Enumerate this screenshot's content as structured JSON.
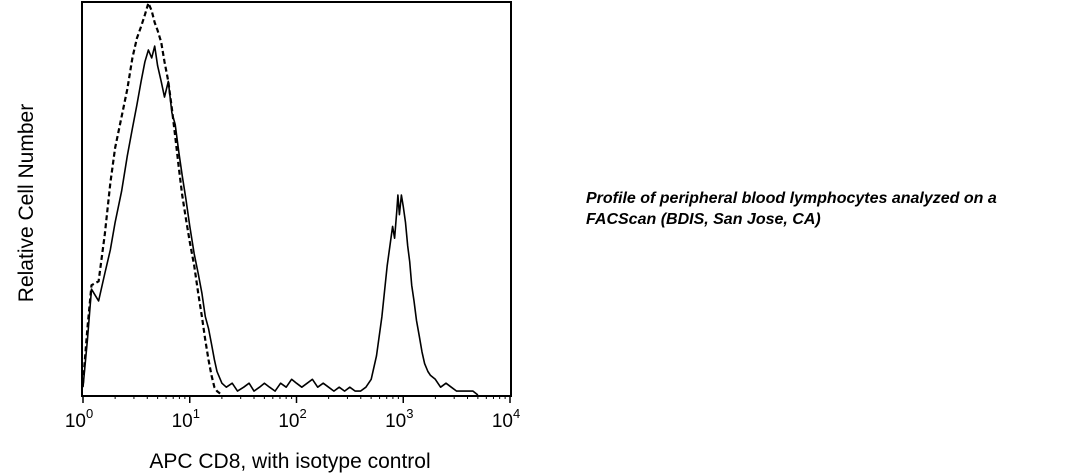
{
  "caption": {
    "line1": "Profile of peripheral blood lymphocytes analyzed on a",
    "line2": "FACScan (BDIS, San Jose, CA)"
  },
  "chart_data": {
    "type": "line",
    "title": "",
    "xlabel": "APC CD8, with isotype control",
    "ylabel": "Relative Cell Number",
    "x_scale": "log",
    "xlim": [
      1,
      10000
    ],
    "ylim": [
      0,
      100
    ],
    "grid": false,
    "legend": "none",
    "xticks": [
      {
        "base": "10",
        "exp": "0",
        "value": 1
      },
      {
        "base": "10",
        "exp": "1",
        "value": 10
      },
      {
        "base": "10",
        "exp": "2",
        "value": 100
      },
      {
        "base": "10",
        "exp": "3",
        "value": 1000
      },
      {
        "base": "10",
        "exp": "4",
        "value": 10000
      }
    ],
    "series": [
      {
        "style": "solid",
        "color": "#000000",
        "points": [
          [
            1.0,
            2
          ],
          [
            1.1,
            14
          ],
          [
            1.2,
            27
          ],
          [
            1.4,
            24
          ],
          [
            1.6,
            31
          ],
          [
            1.8,
            37
          ],
          [
            2.0,
            44
          ],
          [
            2.3,
            52
          ],
          [
            2.6,
            61
          ],
          [
            2.9,
            68
          ],
          [
            3.2,
            74
          ],
          [
            3.5,
            80
          ],
          [
            3.8,
            85
          ],
          [
            4.1,
            88
          ],
          [
            4.4,
            86
          ],
          [
            4.7,
            89
          ],
          [
            5.0,
            84
          ],
          [
            5.4,
            80
          ],
          [
            5.8,
            76
          ],
          [
            6.3,
            80
          ],
          [
            6.8,
            72
          ],
          [
            7.3,
            69
          ],
          [
            7.9,
            62
          ],
          [
            8.5,
            56
          ],
          [
            9.2,
            50
          ],
          [
            10,
            43
          ],
          [
            11,
            36
          ],
          [
            12,
            31
          ],
          [
            13,
            26
          ],
          [
            14,
            20
          ],
          [
            15,
            17
          ],
          [
            16,
            13
          ],
          [
            17,
            9
          ],
          [
            18,
            6
          ],
          [
            20,
            3
          ],
          [
            22,
            2
          ],
          [
            25,
            3
          ],
          [
            28,
            1
          ],
          [
            32,
            2
          ],
          [
            36,
            3
          ],
          [
            40,
            1
          ],
          [
            45,
            2
          ],
          [
            50,
            3
          ],
          [
            56,
            2
          ],
          [
            63,
            1
          ],
          [
            71,
            3
          ],
          [
            80,
            2
          ],
          [
            90,
            4
          ],
          [
            100,
            3
          ],
          [
            112,
            2
          ],
          [
            126,
            3
          ],
          [
            141,
            4
          ],
          [
            158,
            2
          ],
          [
            178,
            3
          ],
          [
            200,
            2
          ],
          [
            224,
            1
          ],
          [
            251,
            2
          ],
          [
            282,
            1
          ],
          [
            316,
            2
          ],
          [
            355,
            1
          ],
          [
            398,
            1
          ],
          [
            447,
            2
          ],
          [
            501,
            4
          ],
          [
            562,
            10
          ],
          [
            631,
            20
          ],
          [
            708,
            33
          ],
          [
            750,
            38
          ],
          [
            794,
            43
          ],
          [
            830,
            40
          ],
          [
            870,
            47
          ],
          [
            891,
            51
          ],
          [
            920,
            46
          ],
          [
            960,
            51
          ],
          [
            1000,
            48
          ],
          [
            1050,
            44
          ],
          [
            1100,
            38
          ],
          [
            1150,
            34
          ],
          [
            1200,
            28
          ],
          [
            1260,
            24
          ],
          [
            1330,
            19
          ],
          [
            1413,
            15
          ],
          [
            1500,
            11
          ],
          [
            1585,
            8
          ],
          [
            1700,
            6
          ],
          [
            1800,
            5
          ],
          [
            1995,
            4
          ],
          [
            2239,
            2
          ],
          [
            2512,
            3
          ],
          [
            2818,
            2
          ],
          [
            3162,
            1
          ],
          [
            3548,
            1
          ],
          [
            4000,
            1
          ],
          [
            4500,
            1
          ],
          [
            5000,
            0
          ]
        ]
      },
      {
        "style": "dashed",
        "color": "#000000",
        "points": [
          [
            1.0,
            3
          ],
          [
            1.1,
            17
          ],
          [
            1.2,
            28
          ],
          [
            1.4,
            29
          ],
          [
            1.6,
            41
          ],
          [
            1.8,
            54
          ],
          [
            2.0,
            63
          ],
          [
            2.3,
            71
          ],
          [
            2.6,
            78
          ],
          [
            2.9,
            86
          ],
          [
            3.2,
            91
          ],
          [
            3.5,
            94
          ],
          [
            3.8,
            97
          ],
          [
            4.1,
            100
          ],
          [
            4.4,
            98
          ],
          [
            4.7,
            95
          ],
          [
            5.0,
            93
          ],
          [
            5.4,
            90
          ],
          [
            5.8,
            85
          ],
          [
            6.3,
            80
          ],
          [
            6.8,
            73
          ],
          [
            7.3,
            66
          ],
          [
            7.9,
            58
          ],
          [
            8.5,
            51
          ],
          [
            9.2,
            45
          ],
          [
            10,
            39
          ],
          [
            11,
            33
          ],
          [
            12,
            26
          ],
          [
            13,
            20
          ],
          [
            14,
            14
          ],
          [
            15,
            9
          ],
          [
            16,
            5
          ],
          [
            17,
            2
          ],
          [
            18,
            1
          ],
          [
            20,
            0
          ]
        ]
      }
    ]
  }
}
